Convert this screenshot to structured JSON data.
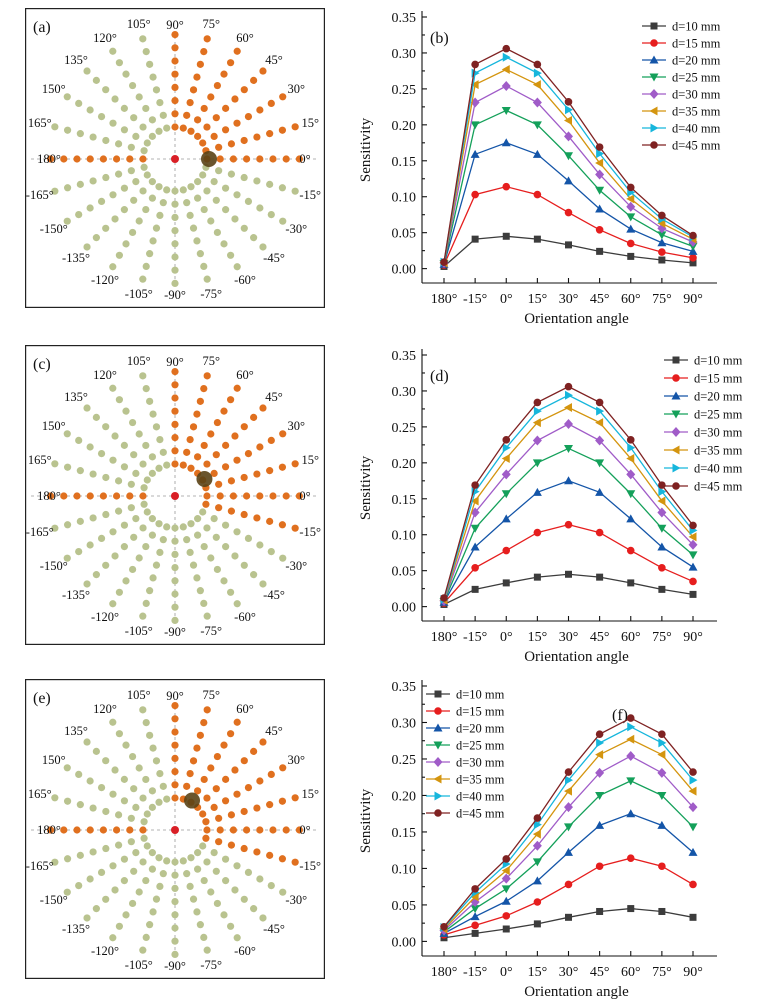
{
  "colors": {
    "sensor_active": "#e0701f",
    "sensor_inactive": "#b9c38f",
    "center_marker": "#d91f26",
    "object_marker": "#5a4316",
    "crosshair": "#9a9a9a"
  },
  "series_colors": [
    "#3c3c3c",
    "#e61e1e",
    "#1455a8",
    "#14a05a",
    "#a05cc8",
    "#d4950f",
    "#16b6dc",
    "#7f2222"
  ],
  "series_markers": [
    "square",
    "circle",
    "triangle-up",
    "triangle-down",
    "diamond",
    "triangle-left",
    "triangle-right",
    "circle"
  ],
  "polar_panels": [
    {
      "label": "(a)",
      "angle_labels": [
        "180°",
        "165°",
        "150°",
        "135°",
        "120°",
        "105°",
        "90°",
        "75°",
        "60°",
        "45°",
        "30°",
        "15°",
        "0°",
        "-15°",
        "-30°",
        "-45°",
        "-60°",
        "-75°",
        "-90°",
        "-105°",
        "-120°",
        "-135°",
        "-150°",
        "-165°"
      ],
      "active_angles": [
        180,
        90,
        75,
        60,
        45,
        30,
        15,
        0
      ],
      "object_angle": 0
    },
    {
      "label": "(c)",
      "angle_labels": [
        "180°",
        "165°",
        "150°",
        "135°",
        "120°",
        "105°",
        "90°",
        "75°",
        "60°",
        "45°",
        "30°",
        "15°",
        "0°",
        "-15°",
        "-30°",
        "-45°",
        "-60°",
        "-75°",
        "-90°",
        "-105°",
        "-120°",
        "-135°",
        "-150°",
        "-165°"
      ],
      "active_angles": [
        180,
        90,
        75,
        60,
        45,
        30,
        15,
        0,
        -15
      ],
      "object_angle": 30
    },
    {
      "label": "(e)",
      "angle_labels": [
        "180°",
        "165°",
        "150°",
        "135°",
        "120°",
        "105°",
        "90°",
        "75°",
        "60°",
        "45°",
        "30°",
        "15°",
        "0°",
        "-15°",
        "-30°",
        "-45°",
        "-60°",
        "-75°",
        "-90°",
        "-105°",
        "-120°",
        "-135°",
        "-150°",
        "-165°"
      ],
      "active_angles": [
        180,
        90,
        75,
        60,
        45,
        30,
        15,
        0,
        -15
      ],
      "object_angle": 60
    }
  ],
  "chart_data": [
    {
      "panel": "(b)",
      "type": "line",
      "xlabel": "Orientation angle",
      "ylabel": "Sensitivity",
      "categories": [
        "180°",
        "-15°",
        "0°",
        "15°",
        "30°",
        "45°",
        "60°",
        "75°",
        "90°"
      ],
      "ylim": [
        -0.02,
        0.35
      ],
      "yticks": [
        "0.00",
        "0.05",
        "0.10",
        "0.15",
        "0.20",
        "0.25",
        "0.30",
        "0.35"
      ],
      "legend_position": "top-right",
      "series": [
        {
          "name": "d=10 mm",
          "values": [
            0.003,
            0.041,
            0.045,
            0.041,
            0.033,
            0.024,
            0.017,
            0.012,
            0.008
          ]
        },
        {
          "name": "d=15 mm",
          "values": [
            0.005,
            0.103,
            0.114,
            0.103,
            0.078,
            0.054,
            0.035,
            0.023,
            0.015
          ]
        },
        {
          "name": "d=20 mm",
          "values": [
            0.006,
            0.159,
            0.175,
            0.159,
            0.122,
            0.083,
            0.055,
            0.036,
            0.024
          ]
        },
        {
          "name": "d=25 mm",
          "values": [
            0.007,
            0.2,
            0.22,
            0.2,
            0.157,
            0.109,
            0.072,
            0.047,
            0.031
          ]
        },
        {
          "name": "d=30 mm",
          "values": [
            0.008,
            0.231,
            0.254,
            0.231,
            0.184,
            0.131,
            0.086,
            0.056,
            0.037
          ]
        },
        {
          "name": "d=35 mm",
          "values": [
            0.008,
            0.256,
            0.277,
            0.256,
            0.206,
            0.147,
            0.097,
            0.063,
            0.041
          ]
        },
        {
          "name": "d=40 mm",
          "values": [
            0.009,
            0.272,
            0.294,
            0.272,
            0.221,
            0.16,
            0.106,
            0.069,
            0.044
          ]
        },
        {
          "name": "d=45 mm",
          "values": [
            0.009,
            0.284,
            0.306,
            0.284,
            0.232,
            0.169,
            0.113,
            0.074,
            0.046
          ]
        }
      ]
    },
    {
      "panel": "(d)",
      "type": "line",
      "xlabel": "Orientation angle",
      "ylabel": "Sensitivity",
      "categories": [
        "180°",
        "-15°",
        "0°",
        "15°",
        "30°",
        "45°",
        "60°",
        "75°",
        "90°"
      ],
      "ylim": [
        -0.02,
        0.35
      ],
      "yticks": [
        "0.00",
        "0.05",
        "0.10",
        "0.15",
        "0.20",
        "0.25",
        "0.30",
        "0.35"
      ],
      "legend_position": "top-right",
      "series": [
        {
          "name": "d=10 mm",
          "values": [
            0.003,
            0.024,
            0.033,
            0.041,
            0.045,
            0.041,
            0.033,
            0.024,
            0.017
          ]
        },
        {
          "name": "d=15 mm",
          "values": [
            0.005,
            0.054,
            0.078,
            0.103,
            0.114,
            0.103,
            0.078,
            0.054,
            0.035
          ]
        },
        {
          "name": "d=20 mm",
          "values": [
            0.006,
            0.083,
            0.122,
            0.159,
            0.175,
            0.159,
            0.122,
            0.083,
            0.055
          ]
        },
        {
          "name": "d=25 mm",
          "values": [
            0.007,
            0.109,
            0.157,
            0.2,
            0.22,
            0.2,
            0.157,
            0.109,
            0.072
          ]
        },
        {
          "name": "d=30 mm",
          "values": [
            0.008,
            0.131,
            0.184,
            0.231,
            0.254,
            0.231,
            0.184,
            0.131,
            0.086
          ]
        },
        {
          "name": "d=35 mm",
          "values": [
            0.009,
            0.147,
            0.206,
            0.256,
            0.277,
            0.256,
            0.206,
            0.147,
            0.097
          ]
        },
        {
          "name": "d=40 mm",
          "values": [
            0.01,
            0.16,
            0.221,
            0.272,
            0.294,
            0.272,
            0.221,
            0.16,
            0.106
          ]
        },
        {
          "name": "d=45 mm",
          "values": [
            0.012,
            0.169,
            0.232,
            0.284,
            0.306,
            0.284,
            0.232,
            0.169,
            0.113
          ]
        }
      ]
    },
    {
      "panel": "(f)",
      "type": "line",
      "xlabel": "Orientation angle",
      "ylabel": "Sensitivity",
      "categories": [
        "180°",
        "-15°",
        "0°",
        "15°",
        "30°",
        "45°",
        "60°",
        "75°",
        "90°"
      ],
      "ylim": [
        -0.02,
        0.35
      ],
      "yticks": [
        "0.00",
        "0.05",
        "0.10",
        "0.15",
        "0.20",
        "0.25",
        "0.30",
        "0.35"
      ],
      "legend_position": "top-left",
      "series": [
        {
          "name": "d=10 mm",
          "values": [
            0.005,
            0.011,
            0.017,
            0.024,
            0.033,
            0.041,
            0.045,
            0.041,
            0.033
          ]
        },
        {
          "name": "d=15 mm",
          "values": [
            0.009,
            0.022,
            0.035,
            0.054,
            0.078,
            0.103,
            0.114,
            0.103,
            0.078
          ]
        },
        {
          "name": "d=20 mm",
          "values": [
            0.011,
            0.034,
            0.055,
            0.083,
            0.122,
            0.159,
            0.175,
            0.159,
            0.122
          ]
        },
        {
          "name": "d=25 mm",
          "values": [
            0.013,
            0.045,
            0.072,
            0.109,
            0.157,
            0.2,
            0.22,
            0.2,
            0.157
          ]
        },
        {
          "name": "d=30 mm",
          "values": [
            0.015,
            0.054,
            0.086,
            0.131,
            0.184,
            0.231,
            0.254,
            0.231,
            0.184
          ]
        },
        {
          "name": "d=35 mm",
          "values": [
            0.017,
            0.061,
            0.097,
            0.147,
            0.206,
            0.256,
            0.277,
            0.256,
            0.206
          ]
        },
        {
          "name": "d=40 mm",
          "values": [
            0.019,
            0.067,
            0.106,
            0.16,
            0.221,
            0.272,
            0.294,
            0.272,
            0.221
          ]
        },
        {
          "name": "d=45 mm",
          "values": [
            0.02,
            0.072,
            0.113,
            0.169,
            0.232,
            0.284,
            0.306,
            0.284,
            0.232
          ]
        }
      ]
    }
  ]
}
